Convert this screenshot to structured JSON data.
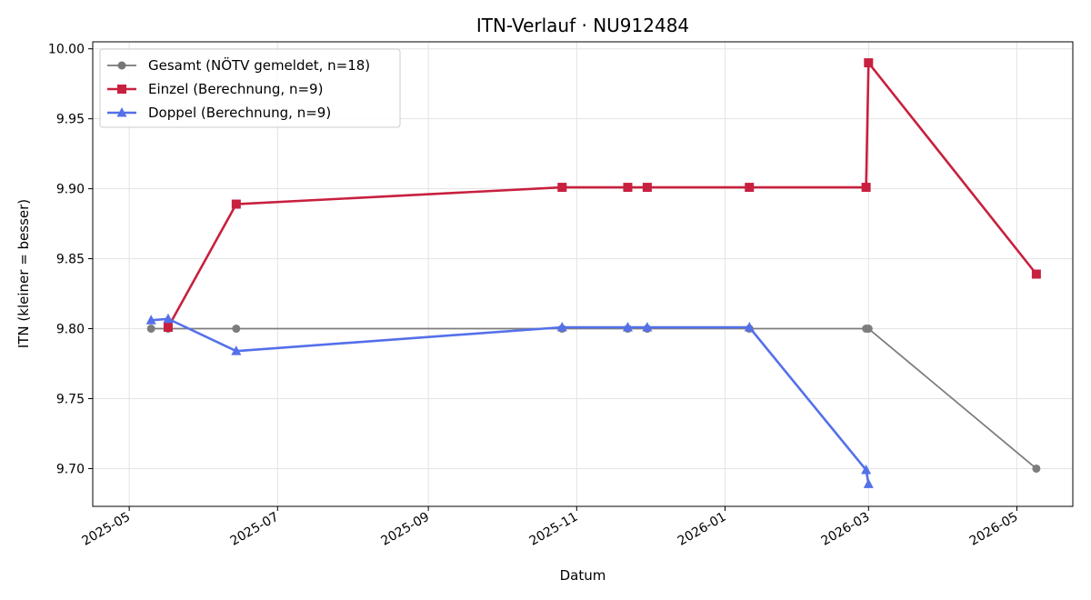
{
  "chart_data": {
    "type": "line",
    "title": "ITN-Verlauf · NU912484",
    "xlabel": "Datum",
    "ylabel": "ITN  (kleiner = besser)",
    "xlim": [
      "2025-04-16",
      "2026-05-24"
    ],
    "ylim": [
      9.673,
      10.005
    ],
    "x_ticks": [
      "2025-05-01",
      "2025-07-01",
      "2025-09-01",
      "2025-11-01",
      "2026-01-01",
      "2026-03-01",
      "2026-05-01"
    ],
    "x_tick_labels": [
      "2025-05",
      "2025-07",
      "2025-09",
      "2025-11",
      "2026-01",
      "2026-03",
      "2026-05"
    ],
    "y_ticks": [
      9.7,
      9.75,
      9.8,
      9.85,
      9.9,
      9.95,
      10.0
    ],
    "y_tick_labels": [
      "9.70",
      "9.75",
      "9.80",
      "9.85",
      "9.90",
      "9.95",
      "10.00"
    ],
    "grid": true,
    "legend_position": "top-left",
    "series": [
      {
        "name": "Gesamt (NÖTV gemeldet, n=18)",
        "color": "#777777",
        "marker": "circle",
        "points": [
          {
            "x": "2025-05-10",
            "y": 9.8
          },
          {
            "x": "2025-05-17",
            "y": 9.8
          },
          {
            "x": "2025-06-14",
            "y": 9.8
          },
          {
            "x": "2025-10-26",
            "y": 9.8
          },
          {
            "x": "2025-11-22",
            "y": 9.8
          },
          {
            "x": "2025-11-30",
            "y": 9.8
          },
          {
            "x": "2026-01-11",
            "y": 9.8
          },
          {
            "x": "2026-02-28",
            "y": 9.8
          },
          {
            "x": "2026-03-01",
            "y": 9.8
          },
          {
            "x": "2026-05-09",
            "y": 9.7
          }
        ]
      },
      {
        "name": "Einzel (Berechnung, n=9)",
        "color": "#c8203f",
        "marker": "square",
        "points": [
          {
            "x": "2025-05-17",
            "y": 9.801
          },
          {
            "x": "2025-06-14",
            "y": 9.889
          },
          {
            "x": "2025-10-26",
            "y": 9.901
          },
          {
            "x": "2025-11-22",
            "y": 9.901
          },
          {
            "x": "2025-11-30",
            "y": 9.901
          },
          {
            "x": "2026-01-11",
            "y": 9.901
          },
          {
            "x": "2026-02-28",
            "y": 9.901
          },
          {
            "x": "2026-03-01",
            "y": 9.99
          },
          {
            "x": "2026-05-09",
            "y": 9.839
          }
        ]
      },
      {
        "name": "Doppel (Berechnung, n=9)",
        "color": "#5470ea",
        "marker": "triangle",
        "points": [
          {
            "x": "2025-05-10",
            "y": 9.806
          },
          {
            "x": "2025-05-17",
            "y": 9.807
          },
          {
            "x": "2025-06-14",
            "y": 9.784
          },
          {
            "x": "2025-10-26",
            "y": 9.801
          },
          {
            "x": "2025-11-22",
            "y": 9.801
          },
          {
            "x": "2025-11-30",
            "y": 9.801
          },
          {
            "x": "2026-01-11",
            "y": 9.801
          },
          {
            "x": "2026-02-28",
            "y": 9.699
          },
          {
            "x": "2026-03-01",
            "y": 9.689
          }
        ]
      }
    ]
  }
}
